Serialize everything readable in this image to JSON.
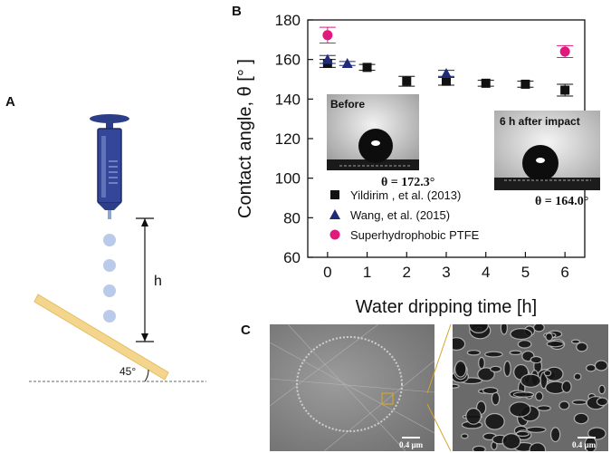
{
  "labels": {
    "a": "A",
    "b": "B",
    "c": "C"
  },
  "setup": {
    "height_label": "h",
    "angle_label": "45°"
  },
  "chart_data": {
    "type": "scatter",
    "xlabel": "Water dripping time [h]",
    "ylabel": "Contact angle, θ [° ]",
    "xlim": [
      -0.5,
      6.5
    ],
    "ylim": [
      60,
      180
    ],
    "xticks": [
      0,
      1,
      2,
      3,
      4,
      5,
      6
    ],
    "yticks": [
      60,
      80,
      100,
      120,
      140,
      160,
      180
    ],
    "grid": false,
    "legend_position": "lower-left",
    "series": [
      {
        "name": "Yildirim , et al. (2013)",
        "marker": "square",
        "color": "#111111",
        "x": [
          0,
          1,
          2,
          3,
          4,
          5,
          6
        ],
        "y": [
          158,
          156,
          149,
          149,
          148,
          147.5,
          144.5
        ],
        "err": [
          2,
          1.5,
          2.5,
          2,
          1.5,
          1.5,
          3
        ]
      },
      {
        "name": "Wang, et al. (2015)",
        "marker": "triangle",
        "color": "#1f2a7a",
        "x": [
          0,
          0.5,
          3
        ],
        "y": [
          160,
          158,
          153
        ],
        "err": [
          2,
          1,
          1.5
        ]
      },
      {
        "name": "Superhydrophobic PTFE",
        "marker": "circle",
        "color": "#e0197d",
        "x": [
          0,
          6
        ],
        "y": [
          172.3,
          164.0
        ],
        "err": [
          4,
          3
        ]
      }
    ],
    "insets": [
      {
        "title": "Before",
        "theta_label": "θ  = 172.3°"
      },
      {
        "title": "6 h after impact",
        "theta_label": "θ  = 164.0°"
      }
    ]
  },
  "sem": {
    "left_scale": "0.4 µm",
    "right_scale": "0.4 µm"
  }
}
